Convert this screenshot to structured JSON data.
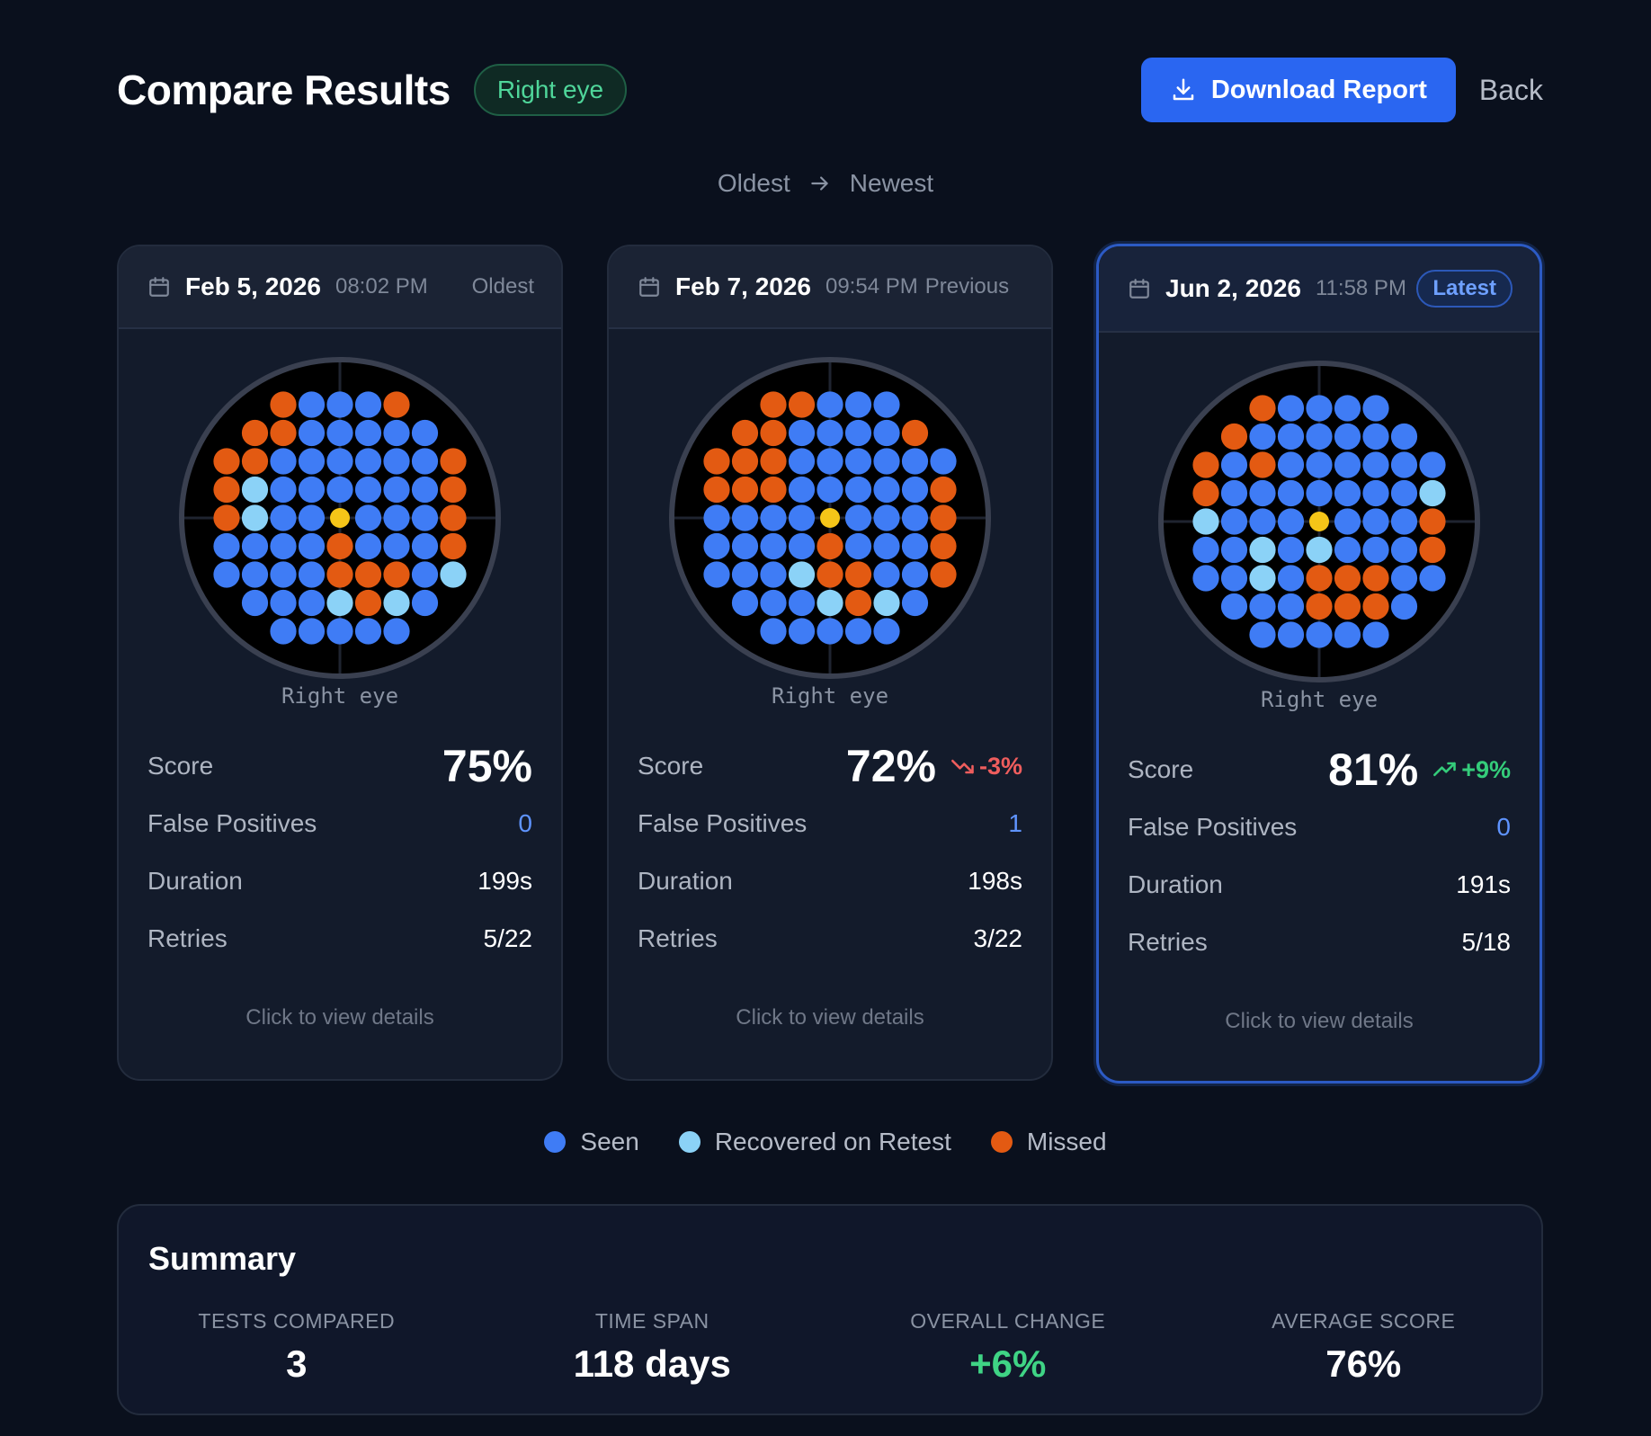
{
  "header": {
    "title": "Compare Results",
    "eye_badge": "Right eye",
    "download_label": "Download Report",
    "back_label": "Back"
  },
  "order": {
    "from": "Oldest",
    "to": "Newest"
  },
  "colors": {
    "seen": "#3f7cf5",
    "recovered": "#8bd2f7",
    "missed": "#e35a12",
    "fixation": "#f5c518",
    "accent": "#2a66f1"
  },
  "cards": [
    {
      "date": "Feb 5, 2026",
      "time": "08:02 PM",
      "tag": "Oldest",
      "eye": "Right eye",
      "score_label": "Score",
      "score": "75%",
      "delta": null,
      "false_positives_label": "False Positives",
      "false_positives": "0",
      "duration_label": "Duration",
      "duration": "199s",
      "retries_label": "Retries",
      "retries": "5/22",
      "details": "Click to view details",
      "field": [
        "--MSSSM--",
        "-MMSSSSS-",
        "MMSSSSSSM",
        "MRSSSSSSM",
        "MRSSFSSSM",
        "SSSSMSSSM",
        "SSSSMMMSR",
        "-SSSRMRS-",
        "--SSSSS--"
      ]
    },
    {
      "date": "Feb 7, 2026",
      "time": "09:54 PM",
      "tag": "Previous",
      "eye": "Right eye",
      "score_label": "Score",
      "score": "72%",
      "delta": {
        "text": "-3%",
        "direction": "down"
      },
      "false_positives_label": "False Positives",
      "false_positives": "1",
      "duration_label": "Duration",
      "duration": "198s",
      "retries_label": "Retries",
      "retries": "3/22",
      "details": "Click to view details",
      "field": [
        "--MMSSS--",
        "-MMSSSSM-",
        "MMMSSSSSS",
        "MMMSSSSSM",
        "SSSSFSSSM",
        "SSSSMSSSM",
        "SSSRMMSSM",
        "-SSSRMRS-",
        "--SSSSS--"
      ]
    },
    {
      "date": "Jun 2, 2026",
      "time": "11:58 PM",
      "tag": "Latest",
      "eye": "Right eye",
      "score_label": "Score",
      "score": "81%",
      "delta": {
        "text": "+9%",
        "direction": "up"
      },
      "false_positives_label": "False Positives",
      "false_positives": "0",
      "duration_label": "Duration",
      "duration": "191s",
      "retries_label": "Retries",
      "retries": "5/18",
      "details": "Click to view details",
      "field": [
        "--MSSSS--",
        "-MSSSSSS-",
        "MSMSSSSSS",
        "MSSSSSSSR",
        "RSSSFSSSM",
        "SSRSRSSSM",
        "SSRSMMMSS",
        "-SSSMMMS-",
        "--SSSSS--"
      ]
    }
  ],
  "legend": [
    {
      "key": "seen",
      "label": "Seen"
    },
    {
      "key": "recovered",
      "label": "Recovered on Retest"
    },
    {
      "key": "missed",
      "label": "Missed"
    }
  ],
  "summary": {
    "title": "Summary",
    "items": [
      {
        "label": "TESTS COMPARED",
        "value": "3"
      },
      {
        "label": "TIME SPAN",
        "value": "118 days"
      },
      {
        "label": "OVERALL CHANGE",
        "value": "+6%"
      },
      {
        "label": "AVERAGE SCORE",
        "value": "76%"
      }
    ]
  }
}
